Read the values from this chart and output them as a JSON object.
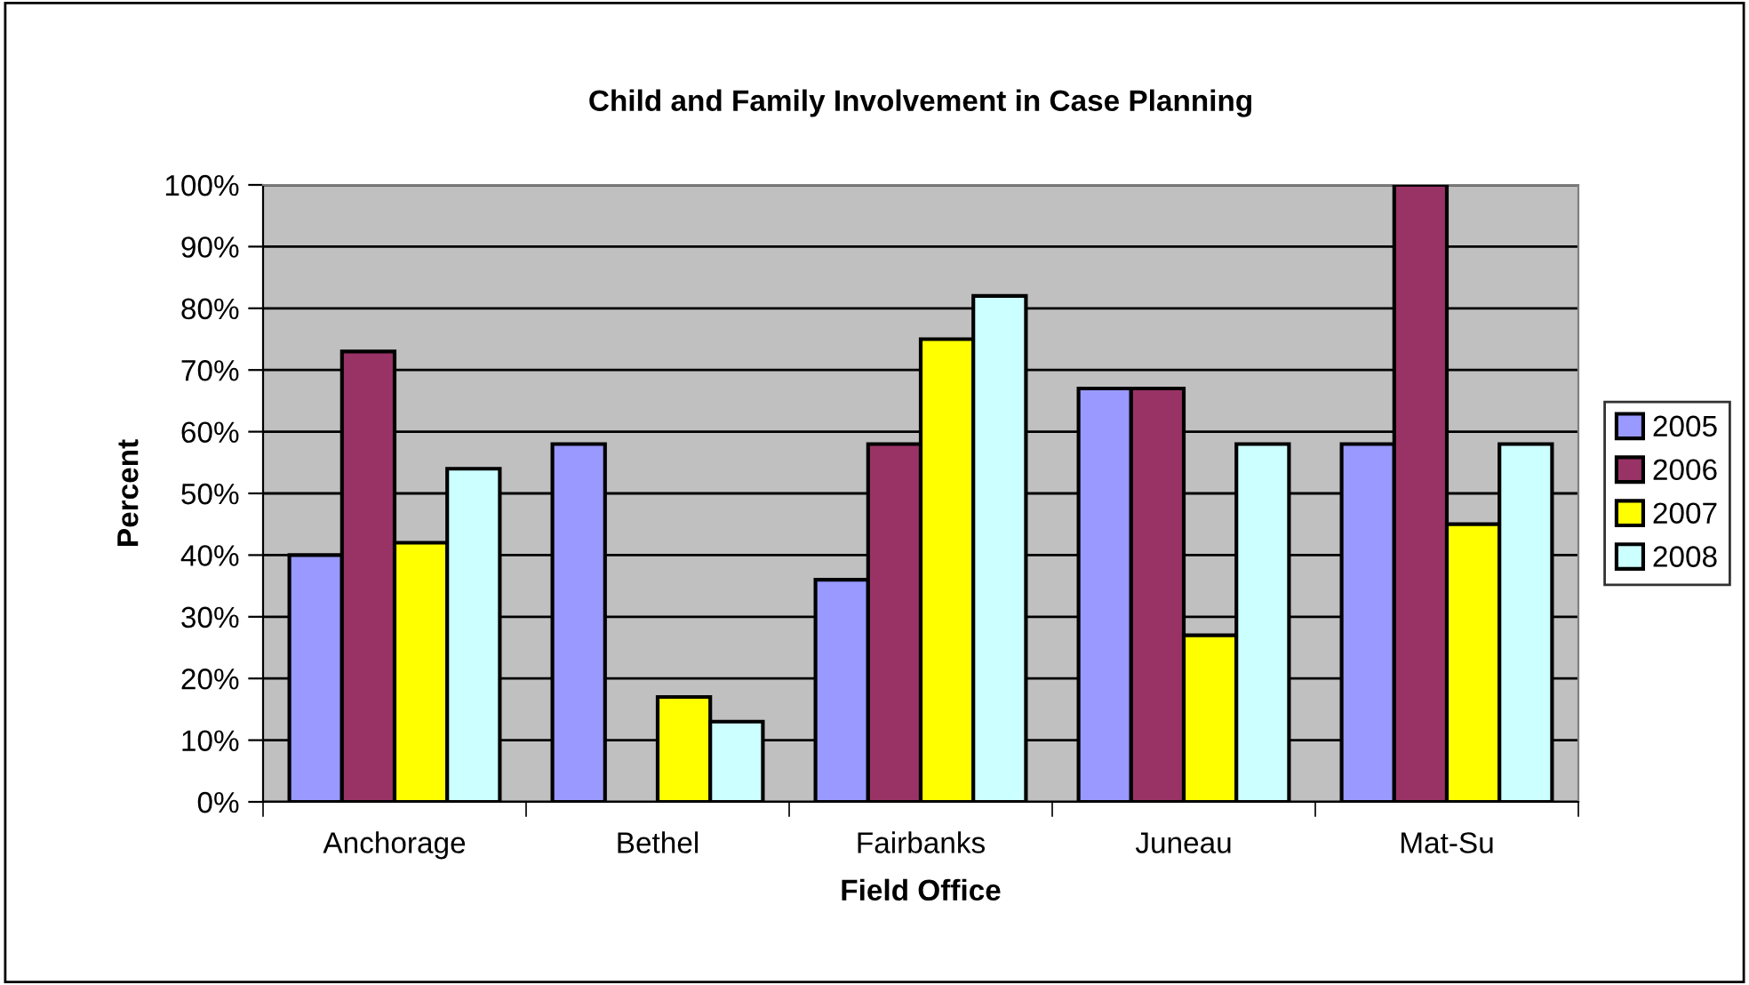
{
  "chart_data": {
    "type": "bar",
    "title": "Child and Family Involvement in Case Planning",
    "xlabel": "Field Office",
    "ylabel": "Percent",
    "categories": [
      "Anchorage",
      "Bethel",
      "Fairbanks",
      "Juneau",
      "Mat-Su"
    ],
    "series": [
      {
        "name": "2005",
        "color": "#9999ff",
        "values": [
          40,
          58,
          36,
          67,
          58
        ]
      },
      {
        "name": "2006",
        "color": "#993366",
        "values": [
          73,
          null,
          58,
          67,
          100
        ]
      },
      {
        "name": "2007",
        "color": "#ffff00",
        "values": [
          42,
          17,
          75,
          27,
          45
        ]
      },
      {
        "name": "2008",
        "color": "#ccffff",
        "values": [
          54,
          13,
          82,
          58,
          58
        ]
      }
    ],
    "ylim": [
      0,
      100
    ],
    "yticks": [
      {
        "value": 0,
        "label": "0%"
      },
      {
        "value": 10,
        "label": "10%"
      },
      {
        "value": 20,
        "label": "20%"
      },
      {
        "value": 30,
        "label": "30%"
      },
      {
        "value": 40,
        "label": "40%"
      },
      {
        "value": 50,
        "label": "50%"
      },
      {
        "value": 60,
        "label": "60%"
      },
      {
        "value": 70,
        "label": "70%"
      },
      {
        "value": 80,
        "label": "80%"
      },
      {
        "value": 90,
        "label": "90%"
      },
      {
        "value": 100,
        "label": "100%"
      }
    ],
    "grid": "y",
    "legend": "right"
  }
}
